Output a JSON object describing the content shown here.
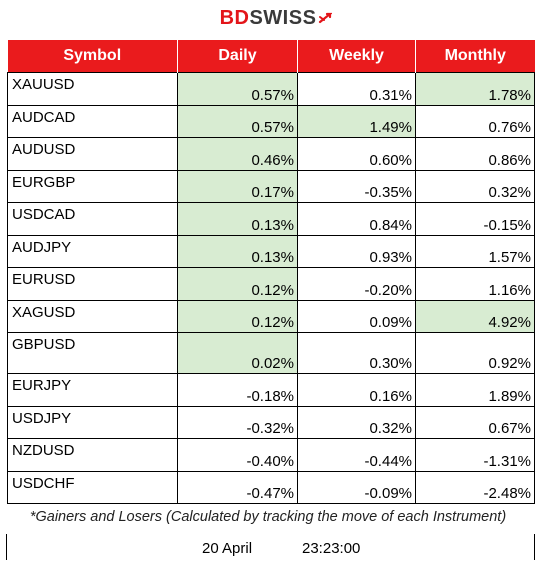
{
  "logo": {
    "part1": "BD",
    "part2": "SWISS",
    "accent": "#e3151a"
  },
  "table": {
    "headers": [
      "Symbol",
      "Daily",
      "Weekly",
      "Monthly"
    ],
    "header_color": "#ea1b1d",
    "highlight_color": "#d8ecd2",
    "rows": [
      {
        "symbol": "XAUUSD",
        "daily": "0.57%",
        "weekly": "0.31%",
        "monthly": "1.78%"
      },
      {
        "symbol": "AUDCAD",
        "daily": "0.57%",
        "weekly": "1.49%",
        "monthly": "0.76%"
      },
      {
        "symbol": "AUDUSD",
        "daily": "0.46%",
        "weekly": "0.60%",
        "monthly": "0.86%"
      },
      {
        "symbol": "EURGBP",
        "daily": "0.17%",
        "weekly": "-0.35%",
        "monthly": "0.32%"
      },
      {
        "symbol": "USDCAD",
        "daily": "0.13%",
        "weekly": "0.84%",
        "monthly": "-0.15%"
      },
      {
        "symbol": "AUDJPY",
        "daily": "0.13%",
        "weekly": "0.93%",
        "monthly": "1.57%"
      },
      {
        "symbol": "EURUSD",
        "daily": "0.12%",
        "weekly": "-0.20%",
        "monthly": "1.16%"
      },
      {
        "symbol": "XAGUSD",
        "daily": "0.12%",
        "weekly": "0.09%",
        "monthly": "4.92%"
      },
      {
        "symbol": "GBPUSD",
        "daily": "0.02%",
        "weekly": "0.30%",
        "monthly": "0.92%"
      },
      {
        "symbol": "EURJPY",
        "daily": "-0.18%",
        "weekly": "0.16%",
        "monthly": "1.89%"
      },
      {
        "symbol": "USDJPY",
        "daily": "-0.32%",
        "weekly": "0.32%",
        "monthly": "0.67%"
      },
      {
        "symbol": "NZDUSD",
        "daily": "-0.40%",
        "weekly": "-0.44%",
        "monthly": "-1.31%"
      },
      {
        "symbol": "USDCHF",
        "daily": "-0.47%",
        "weekly": "-0.09%",
        "monthly": "-2.48%"
      }
    ]
  },
  "footnote": "*Gainers and Losers (Calculated by tracking the move of each Instrument)",
  "footer": {
    "date": "20 April",
    "time": "23:23:00"
  }
}
